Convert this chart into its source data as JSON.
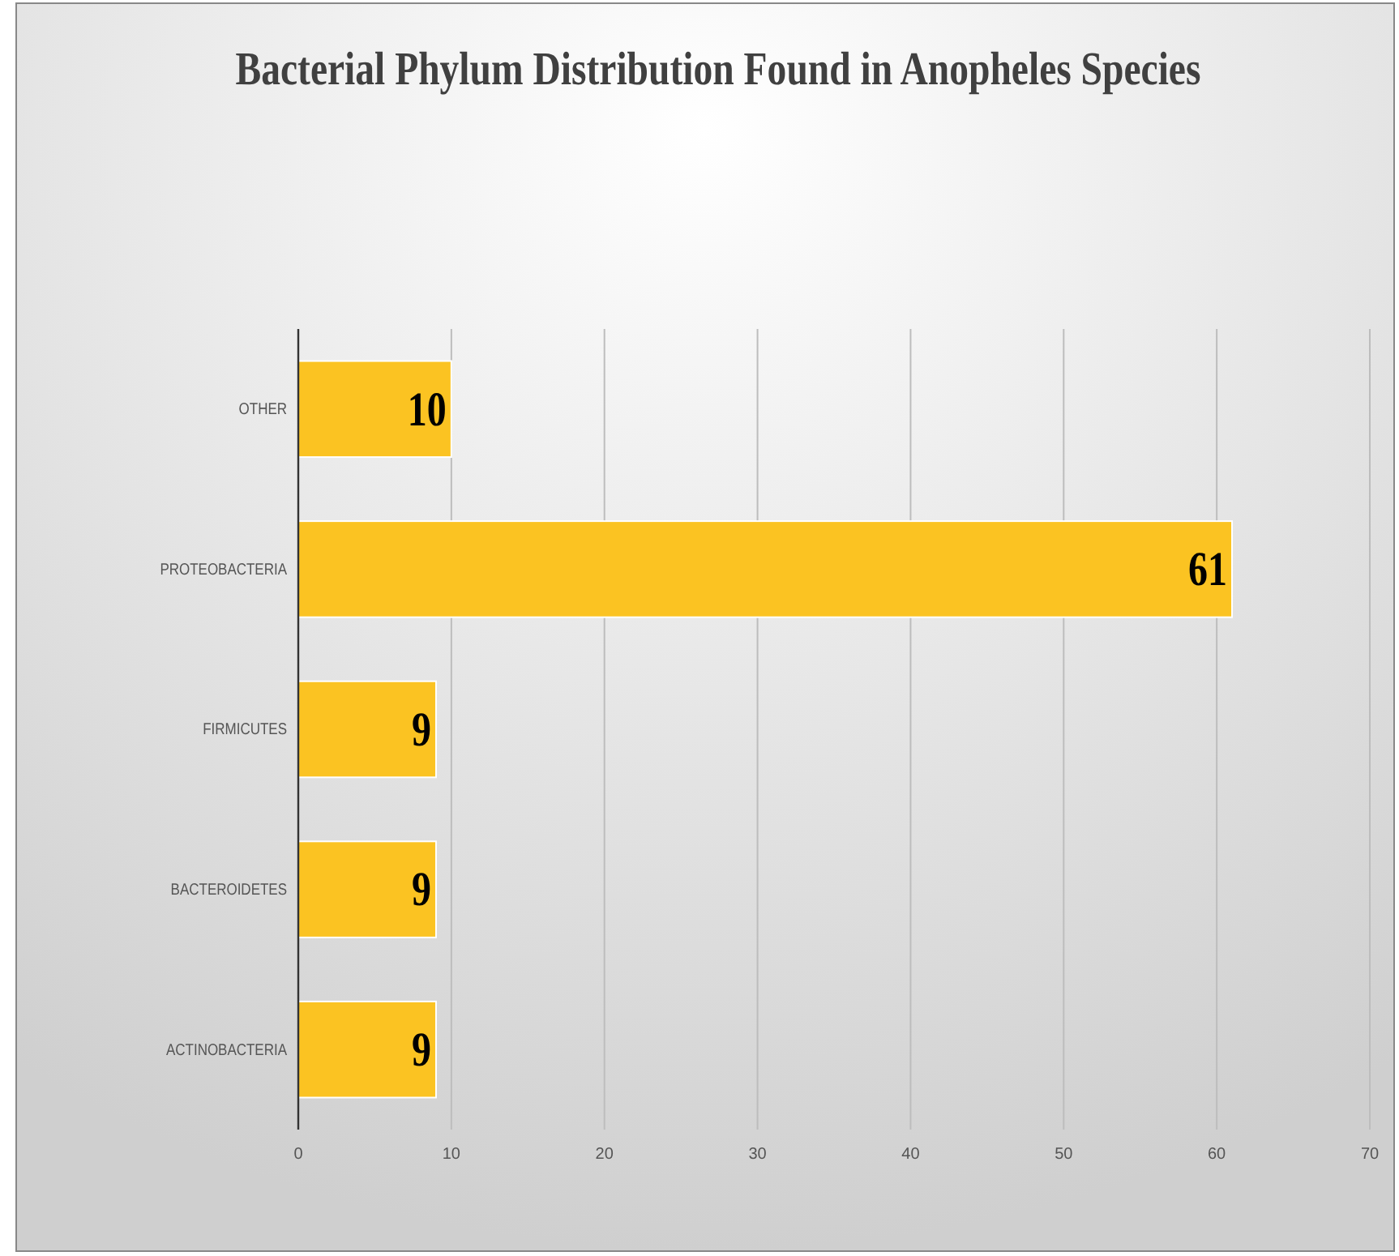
{
  "chart_data": {
    "type": "bar",
    "orientation": "horizontal",
    "title": "Bacterial Phylum Distribution Found in Anopheles Species",
    "categories": [
      "OTHER",
      "PROTEOBACTERIA",
      "FIRMICUTES",
      "BACTEROIDETES",
      "ACTINOBACTERIA"
    ],
    "values": [
      10,
      61,
      9,
      9,
      9
    ],
    "color": "#fbc322",
    "xlim": [
      0,
      70
    ],
    "xticks": [
      0,
      10,
      20,
      30,
      40,
      50,
      60,
      70
    ],
    "grid": "x",
    "data_labels": true
  }
}
